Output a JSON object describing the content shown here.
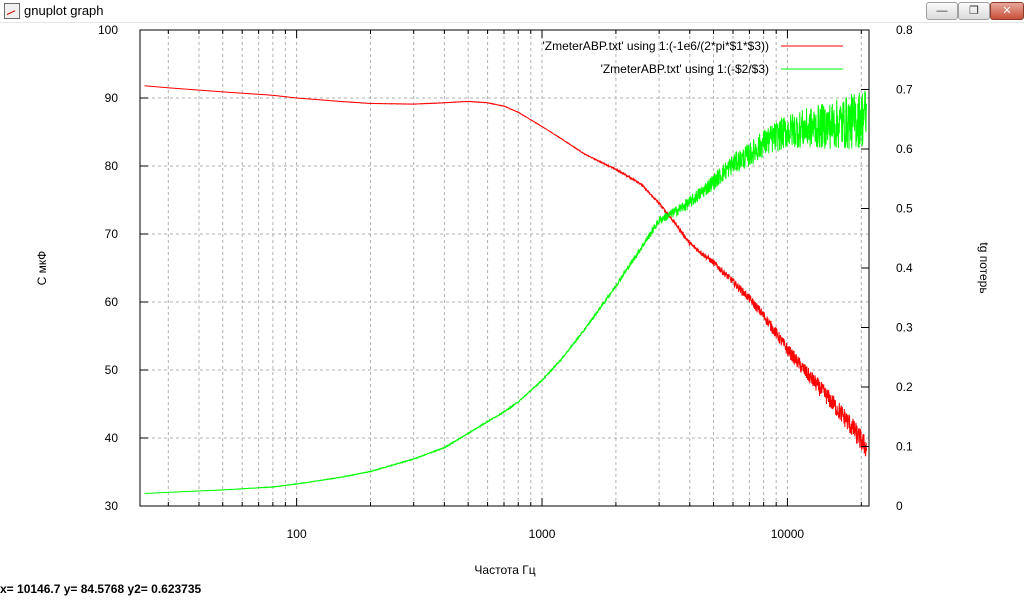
{
  "window": {
    "title": "gnuplot graph",
    "app_icon": "gnuplot-graph-icon",
    "buttons": {
      "minimize": "—",
      "maximize": "❐",
      "close": "✕"
    }
  },
  "status_bar": {
    "text": "x= 10146.7 y= 84.5768 y2= 0.623735"
  },
  "colors": {
    "series1": "#ff0000",
    "series2": "#00ff00",
    "grid": "#b0b0b0",
    "frame": "#000000"
  },
  "chart_data": {
    "type": "line",
    "x_scale": "log",
    "xlabel": "Частота Гц",
    "ylabel": "С мкФ",
    "y2label": "tg потерь",
    "xlim": [
      23,
      21500
    ],
    "ylim": [
      30,
      100
    ],
    "y2lim": [
      0,
      0.8
    ],
    "grid": true,
    "legend_position": "top-right",
    "x_ticks": [
      100,
      1000,
      10000
    ],
    "y_ticks": [
      30,
      40,
      50,
      60,
      70,
      80,
      90,
      100
    ],
    "y2_ticks": [
      0,
      0.1,
      0.2,
      0.3,
      0.4,
      0.5,
      0.6,
      0.7,
      0.8
    ],
    "series": [
      {
        "name": "'ZmeterABP.txt' using 1:(-1e6/(2*pi*$1*$3))",
        "axis": "y",
        "color": "#ff0000",
        "x": [
          24,
          30,
          50,
          80,
          100,
          150,
          200,
          300,
          400,
          500,
          600,
          700,
          800,
          1000,
          1200,
          1500,
          2000,
          2500,
          3000,
          3500,
          4000,
          5000,
          6000,
          7000,
          8000,
          10000,
          12000,
          15000,
          18000,
          21000
        ],
        "values": [
          91.8,
          91.5,
          90.9,
          90.4,
          90.0,
          89.5,
          89.2,
          89.1,
          89.3,
          89.5,
          89.3,
          88.8,
          87.9,
          85.8,
          84.0,
          81.7,
          79.5,
          77.5,
          74.5,
          71.5,
          68.6,
          65.8,
          63.0,
          60.5,
          58.0,
          53.0,
          49.5,
          45.5,
          42.0,
          38.5
        ],
        "noise": 1.6
      },
      {
        "name": "'ZmeterABP.txt' using 1:(-$2/$3)",
        "axis": "y2",
        "color": "#00ff00",
        "x": [
          24,
          30,
          50,
          80,
          100,
          150,
          200,
          300,
          400,
          500,
          600,
          700,
          800,
          1000,
          1200,
          1500,
          2000,
          2500,
          3000,
          3500,
          4000,
          5000,
          6000,
          7000,
          8000,
          10000,
          12000,
          15000,
          18000,
          21000
        ],
        "values": [
          0.021,
          0.023,
          0.027,
          0.032,
          0.037,
          0.048,
          0.058,
          0.079,
          0.098,
          0.122,
          0.142,
          0.158,
          0.175,
          0.211,
          0.247,
          0.298,
          0.37,
          0.43,
          0.48,
          0.495,
          0.51,
          0.545,
          0.575,
          0.59,
          0.61,
          0.63,
          0.635,
          0.64,
          0.645,
          0.655
        ],
        "noise": 0.05
      }
    ]
  }
}
